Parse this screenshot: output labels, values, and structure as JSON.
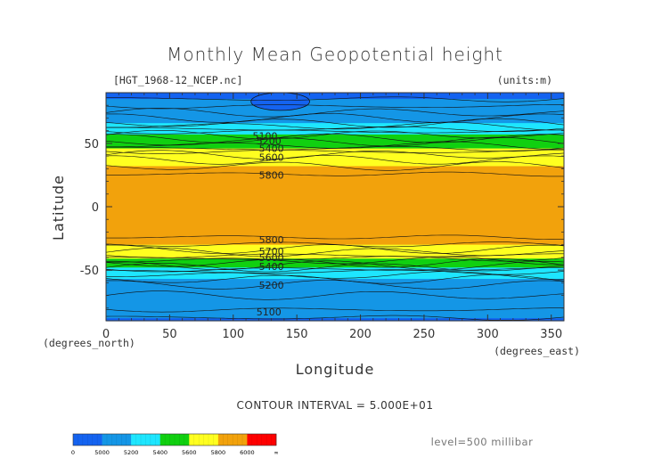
{
  "chart_data": {
    "type": "heatmap",
    "title": "Monthly Mean Geopotential height",
    "filename": "[HGT_1968-12_NCEP.nc]",
    "units": "(units:m)",
    "xlabel": "Longitude",
    "ylabel": "Latitude",
    "x_unit": "(degrees_east)",
    "y_unit": "(degrees_north)",
    "xlim": [
      0,
      360
    ],
    "ylim": [
      -90,
      90
    ],
    "x_ticks": [
      0,
      50,
      100,
      150,
      200,
      250,
      300,
      350
    ],
    "y_ticks": [
      -50,
      0,
      50
    ],
    "contour_interval_text": "CONTOUR INTERVAL = 5.000E+01",
    "level_text": "level=500 millibar",
    "colorbar": {
      "tick_labels": [
        "0",
        "5000",
        "5200",
        "5400",
        "5600",
        "5800",
        "6000",
        "∞"
      ],
      "colors": [
        "#1463f0",
        "#1496e6",
        "#1ee6ff",
        "#10d010",
        "#ffff20",
        "#f2a20c",
        "#ff0000"
      ]
    },
    "zonal_profile": {
      "lat": [
        90,
        84,
        76,
        66,
        58,
        48,
        40,
        32,
        22,
        0,
        -22,
        -32,
        -40,
        -46,
        -52,
        -60,
        -70,
        -80,
        -90
      ],
      "height": [
        4950,
        5010,
        5080,
        5200,
        5380,
        5560,
        5720,
        5800,
        5880,
        5890,
        5870,
        5780,
        5620,
        5460,
        5280,
        5160,
        5100,
        5060,
        4980
      ]
    },
    "contour_labels": [
      {
        "text": "5100",
        "lon": 125,
        "lat": 56
      },
      {
        "text": "5200",
        "lon": 128,
        "lat": 52
      },
      {
        "text": "5400",
        "lon": 130,
        "lat": 46
      },
      {
        "text": "5600",
        "lon": 130,
        "lat": 39
      },
      {
        "text": "5800",
        "lon": 130,
        "lat": 25
      },
      {
        "text": "5800",
        "lon": 130,
        "lat": -26
      },
      {
        "text": "5700",
        "lon": 130,
        "lat": -35
      },
      {
        "text": "5600",
        "lon": 130,
        "lat": -40
      },
      {
        "text": "5400",
        "lon": 130,
        "lat": -47
      },
      {
        "text": "5200",
        "lon": 130,
        "lat": -62
      },
      {
        "text": "5100",
        "lon": 128,
        "lat": -83
      }
    ]
  }
}
